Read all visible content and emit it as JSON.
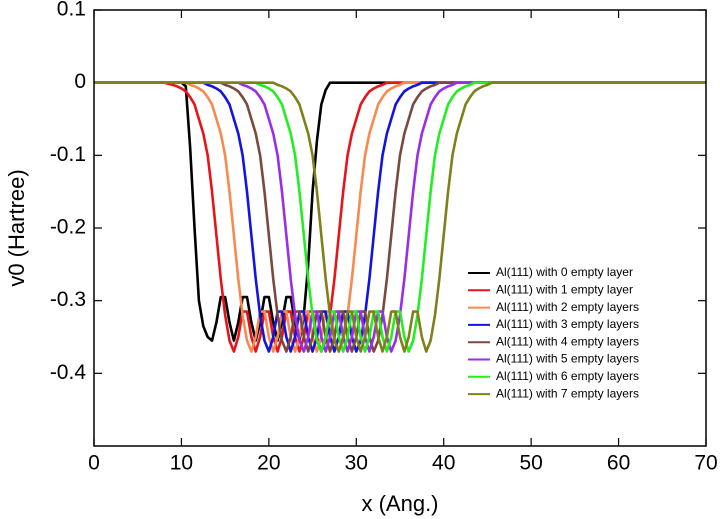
{
  "chart_data": {
    "type": "line",
    "xlabel": "x (Ang.)",
    "ylabel": "v0 (Hartree)",
    "x": [
      0,
      5,
      8,
      9,
      9.5,
      10,
      10.5,
      11,
      11.5,
      12,
      12.5,
      13,
      13.5,
      14,
      14.5,
      15,
      15.5,
      16,
      16.5,
      17,
      17.5,
      18,
      18.5,
      19,
      19.5,
      20,
      20.5,
      21,
      21.5,
      22,
      22.5,
      23,
      23.5,
      24,
      24.5,
      25,
      25.5,
      26,
      26.5,
      27,
      27.5,
      28,
      28.5,
      29,
      29.5,
      30,
      30.5,
      31,
      31.5,
      32,
      32.5,
      33,
      33.5,
      34,
      34.5,
      35,
      35.5,
      36,
      36.5,
      37,
      37.5,
      38,
      38.5,
      39,
      39.5,
      40,
      40.5,
      41,
      41.5,
      42,
      42.5,
      43,
      43.5,
      44,
      44.5,
      45,
      45.5,
      46,
      48,
      50,
      55,
      60,
      65,
      70
    ],
    "series": [
      {
        "name": "Al(111) with 0 empty layer",
        "color": "#000000",
        "values": [
          0,
          0,
          0,
          0,
          0,
          0,
          -0.005,
          -0.09,
          -0.2,
          -0.3,
          -0.335,
          -0.35,
          -0.355,
          -0.33,
          -0.295,
          -0.295,
          -0.33,
          -0.355,
          -0.33,
          -0.295,
          -0.295,
          -0.33,
          -0.355,
          -0.33,
          -0.295,
          -0.295,
          -0.33,
          -0.355,
          -0.33,
          -0.295,
          -0.295,
          -0.33,
          -0.355,
          -0.32,
          -0.25,
          -0.15,
          -0.08,
          -0.03,
          -0.01,
          0,
          0,
          0,
          0,
          0,
          0,
          0,
          0,
          0,
          0,
          0,
          0,
          0,
          0,
          0,
          0,
          0,
          0,
          0,
          0,
          0,
          0,
          0,
          0,
          0,
          0,
          0,
          0,
          0,
          0,
          0,
          0,
          0,
          0,
          0,
          0,
          0,
          0,
          0,
          0,
          0,
          0,
          0,
          0,
          0
        ]
      },
      {
        "name": "Al(111) with 1 empty layer",
        "color": "#e8141a",
        "values": [
          0,
          0,
          0,
          -0.003,
          -0.005,
          -0.008,
          -0.012,
          -0.02,
          -0.03,
          -0.05,
          -0.07,
          -0.1,
          -0.15,
          -0.21,
          -0.27,
          -0.32,
          -0.355,
          -0.37,
          -0.35,
          -0.315,
          -0.315,
          -0.35,
          -0.37,
          -0.35,
          -0.315,
          -0.315,
          -0.35,
          -0.37,
          -0.35,
          -0.315,
          -0.315,
          -0.35,
          -0.37,
          -0.35,
          -0.315,
          -0.315,
          -0.35,
          -0.37,
          -0.355,
          -0.32,
          -0.27,
          -0.21,
          -0.15,
          -0.1,
          -0.07,
          -0.05,
          -0.03,
          -0.02,
          -0.012,
          -0.008,
          -0.005,
          -0.003,
          0,
          0,
          0,
          0,
          0,
          0,
          0,
          0,
          0,
          0,
          0,
          0,
          0,
          0,
          0,
          0,
          0,
          0,
          0,
          0,
          0,
          0,
          0,
          0,
          0,
          0,
          0,
          0,
          0,
          0,
          0,
          0
        ]
      },
      {
        "name": "Al(111) with 2 empty layers",
        "color": "#f88a50",
        "values": [
          0,
          0,
          0,
          0,
          0,
          0,
          0,
          -0.003,
          -0.005,
          -0.008,
          -0.012,
          -0.02,
          -0.03,
          -0.05,
          -0.07,
          -0.1,
          -0.15,
          -0.21,
          -0.27,
          -0.32,
          -0.355,
          -0.37,
          -0.35,
          -0.315,
          -0.315,
          -0.35,
          -0.37,
          -0.35,
          -0.315,
          -0.315,
          -0.35,
          -0.37,
          -0.35,
          -0.315,
          -0.315,
          -0.35,
          -0.37,
          -0.35,
          -0.315,
          -0.315,
          -0.35,
          -0.37,
          -0.355,
          -0.32,
          -0.27,
          -0.21,
          -0.15,
          -0.1,
          -0.07,
          -0.05,
          -0.03,
          -0.02,
          -0.012,
          -0.008,
          -0.005,
          -0.003,
          0,
          0,
          0,
          0,
          0,
          0,
          0,
          0,
          0,
          0,
          0,
          0,
          0,
          0,
          0,
          0,
          0,
          0,
          0,
          0,
          0,
          0,
          0,
          0,
          0,
          0,
          0,
          0
        ]
      },
      {
        "name": "Al(111) with 3 empty layers",
        "color": "#1414e0",
        "values": [
          0,
          0,
          0,
          0,
          0,
          0,
          0,
          0,
          0,
          0,
          0,
          -0.003,
          -0.005,
          -0.008,
          -0.012,
          -0.02,
          -0.03,
          -0.05,
          -0.07,
          -0.1,
          -0.15,
          -0.21,
          -0.27,
          -0.32,
          -0.355,
          -0.37,
          -0.35,
          -0.315,
          -0.315,
          -0.35,
          -0.37,
          -0.35,
          -0.315,
          -0.315,
          -0.35,
          -0.37,
          -0.35,
          -0.315,
          -0.315,
          -0.35,
          -0.37,
          -0.35,
          -0.315,
          -0.315,
          -0.35,
          -0.37,
          -0.355,
          -0.32,
          -0.27,
          -0.21,
          -0.15,
          -0.1,
          -0.07,
          -0.05,
          -0.03,
          -0.02,
          -0.012,
          -0.008,
          -0.005,
          -0.003,
          0,
          0,
          0,
          0,
          0,
          0,
          0,
          0,
          0,
          0,
          0,
          0,
          0,
          0,
          0,
          0,
          0,
          0,
          0,
          0,
          0,
          0,
          0,
          0
        ]
      },
      {
        "name": "Al(111) with 4 empty layers",
        "color": "#7a4a3e",
        "values": [
          0,
          0,
          0,
          0,
          0,
          0,
          0,
          0,
          0,
          0,
          0,
          0,
          0,
          0,
          0,
          -0.003,
          -0.005,
          -0.008,
          -0.012,
          -0.02,
          -0.03,
          -0.05,
          -0.07,
          -0.1,
          -0.15,
          -0.21,
          -0.27,
          -0.32,
          -0.355,
          -0.37,
          -0.35,
          -0.315,
          -0.315,
          -0.35,
          -0.37,
          -0.35,
          -0.315,
          -0.315,
          -0.35,
          -0.37,
          -0.35,
          -0.315,
          -0.315,
          -0.35,
          -0.37,
          -0.35,
          -0.315,
          -0.315,
          -0.35,
          -0.37,
          -0.355,
          -0.32,
          -0.27,
          -0.21,
          -0.15,
          -0.1,
          -0.07,
          -0.05,
          -0.03,
          -0.02,
          -0.012,
          -0.008,
          -0.005,
          -0.003,
          0,
          0,
          0,
          0,
          0,
          0,
          0,
          0,
          0,
          0,
          0,
          0,
          0,
          0,
          0,
          0,
          0,
          0,
          0,
          0
        ]
      },
      {
        "name": "Al(111) with 5 empty layers",
        "color": "#9a2ee8",
        "values": [
          0,
          0,
          0,
          0,
          0,
          0,
          0,
          0,
          0,
          0,
          0,
          0,
          0,
          0,
          0,
          0,
          0,
          0,
          0,
          -0.003,
          -0.005,
          -0.008,
          -0.012,
          -0.02,
          -0.03,
          -0.05,
          -0.07,
          -0.1,
          -0.15,
          -0.21,
          -0.27,
          -0.32,
          -0.355,
          -0.37,
          -0.35,
          -0.315,
          -0.315,
          -0.35,
          -0.37,
          -0.35,
          -0.315,
          -0.315,
          -0.35,
          -0.37,
          -0.35,
          -0.315,
          -0.315,
          -0.35,
          -0.37,
          -0.35,
          -0.315,
          -0.315,
          -0.35,
          -0.37,
          -0.355,
          -0.32,
          -0.27,
          -0.21,
          -0.15,
          -0.1,
          -0.07,
          -0.05,
          -0.03,
          -0.02,
          -0.012,
          -0.008,
          -0.005,
          -0.003,
          0,
          0,
          0,
          0,
          0,
          0,
          0,
          0,
          0,
          0,
          0,
          0,
          0,
          0,
          0,
          0
        ]
      },
      {
        "name": "Al(111) with 6 empty layers",
        "color": "#22ee22",
        "values": [
          0,
          0,
          0,
          0,
          0,
          0,
          0,
          0,
          0,
          0,
          0,
          0,
          0,
          0,
          0,
          0,
          0,
          0,
          0,
          0,
          0,
          0,
          0,
          -0.003,
          -0.005,
          -0.008,
          -0.012,
          -0.02,
          -0.03,
          -0.05,
          -0.07,
          -0.1,
          -0.15,
          -0.21,
          -0.27,
          -0.32,
          -0.355,
          -0.37,
          -0.35,
          -0.315,
          -0.315,
          -0.35,
          -0.37,
          -0.35,
          -0.315,
          -0.315,
          -0.35,
          -0.37,
          -0.35,
          -0.315,
          -0.315,
          -0.35,
          -0.37,
          -0.35,
          -0.315,
          -0.315,
          -0.35,
          -0.37,
          -0.355,
          -0.32,
          -0.27,
          -0.21,
          -0.15,
          -0.1,
          -0.07,
          -0.05,
          -0.03,
          -0.02,
          -0.012,
          -0.008,
          -0.005,
          -0.003,
          0,
          0,
          0,
          0,
          0,
          0,
          0,
          0,
          0,
          0,
          0,
          0
        ]
      },
      {
        "name": "Al(111) with 7 empty layers",
        "color": "#80801a",
        "values": [
          0,
          0,
          0,
          0,
          0,
          0,
          0,
          0,
          0,
          0,
          0,
          0,
          0,
          0,
          0,
          0,
          0,
          0,
          0,
          0,
          0,
          0,
          0,
          0,
          0,
          0,
          0,
          -0.003,
          -0.005,
          -0.008,
          -0.012,
          -0.02,
          -0.03,
          -0.05,
          -0.07,
          -0.1,
          -0.15,
          -0.21,
          -0.27,
          -0.32,
          -0.355,
          -0.37,
          -0.35,
          -0.315,
          -0.315,
          -0.35,
          -0.37,
          -0.35,
          -0.315,
          -0.315,
          -0.35,
          -0.37,
          -0.35,
          -0.315,
          -0.315,
          -0.35,
          -0.37,
          -0.35,
          -0.315,
          -0.315,
          -0.35,
          -0.37,
          -0.355,
          -0.32,
          -0.27,
          -0.21,
          -0.15,
          -0.1,
          -0.07,
          -0.05,
          -0.03,
          -0.02,
          -0.012,
          -0.008,
          -0.005,
          -0.003,
          0,
          0,
          0,
          0,
          0,
          0,
          0,
          0
        ]
      }
    ],
    "xlim": [
      0,
      70
    ],
    "xticks": [
      0,
      10,
      20,
      30,
      40,
      50,
      60,
      70
    ],
    "ylim": [
      -0.5,
      0.1
    ],
    "yticks": [
      -0.4,
      -0.3,
      -0.2,
      -0.1,
      0,
      0.1
    ],
    "grid": false,
    "legend": "lower right"
  }
}
